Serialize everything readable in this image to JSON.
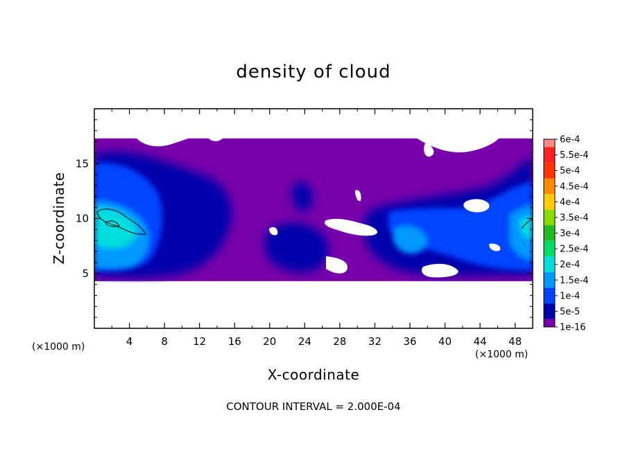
{
  "chart_data": {
    "type": "heatmap",
    "title": "density of cloud",
    "xlabel": "X-coordinate",
    "ylabel": "Z-coordinate",
    "x_unit": "(×1000 m)",
    "z_unit": "(×1000 m)",
    "xlim": [
      0,
      50
    ],
    "ylim": [
      0,
      20
    ],
    "x_ticks": [
      4,
      8,
      12,
      16,
      20,
      24,
      28,
      32,
      36,
      40,
      44,
      48
    ],
    "x_tick_labels": [
      "4",
      "8",
      "12",
      "16",
      "20",
      "24",
      "28",
      "32",
      "36",
      "40",
      "44",
      "48"
    ],
    "y_ticks": [
      5,
      10,
      15
    ],
    "y_tick_labels": [
      "5",
      "10",
      "15"
    ],
    "colorbar": {
      "labels": [
        "6e-4",
        "5.5e-4",
        "5e-4",
        "4.5e-4",
        "4e-4",
        "3.5e-4",
        "3e-4",
        "2.5e-4",
        "2e-4",
        "1.5e-4",
        "1e-4",
        "5e-5",
        "1e-16"
      ],
      "colors": [
        "#ff8888",
        "#ff2222",
        "#ff3300",
        "#ff8800",
        "#ffcc00",
        "#88dd00",
        "#22bb22",
        "#00dd66",
        "#00dddd",
        "#0099ff",
        "#0044ff",
        "#0000aa",
        "#7700aa"
      ]
    },
    "cloud_layer_z_range": [
      4.3,
      17.3
    ],
    "footnote": "CONTOUR INTERVAL = 2.000E-04"
  }
}
